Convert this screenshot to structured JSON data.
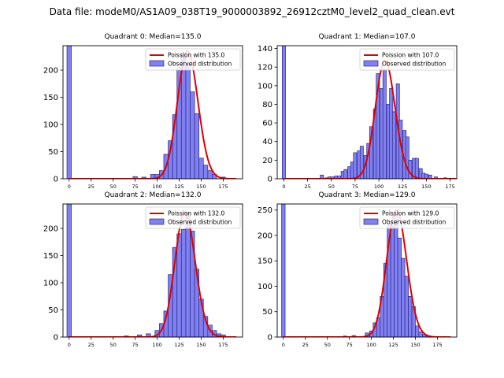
{
  "suptitle": "Data file: modeM0/AS1A09_038T19_9000003892_26912cztM0_level2_quad_clean.evt",
  "colors": {
    "bar_fill": "#8080f0",
    "bar_edge": "#2a2a8a",
    "curve": "#e00000",
    "frame": "#000000"
  },
  "chart_data": [
    {
      "type": "bar",
      "title": "Quadrant 0: Median=135.0",
      "xlabel": "",
      "ylabel": "",
      "xlim": [
        -7,
        197
      ],
      "ylim": [
        0,
        245
      ],
      "xticks": [
        0,
        25,
        50,
        75,
        100,
        125,
        150,
        175
      ],
      "yticks": [
        0,
        50,
        100,
        150,
        200
      ],
      "bin_width": 5,
      "bins": [
        {
          "x": 0,
          "v": 245
        },
        {
          "x": 75,
          "v": 4
        },
        {
          "x": 85,
          "v": 3
        },
        {
          "x": 95,
          "v": 8
        },
        {
          "x": 100,
          "v": 8
        },
        {
          "x": 105,
          "v": 15
        },
        {
          "x": 110,
          "v": 45
        },
        {
          "x": 115,
          "v": 70
        },
        {
          "x": 120,
          "v": 118
        },
        {
          "x": 125,
          "v": 205
        },
        {
          "x": 130,
          "v": 232
        },
        {
          "x": 135,
          "v": 212
        },
        {
          "x": 140,
          "v": 160
        },
        {
          "x": 145,
          "v": 120
        },
        {
          "x": 150,
          "v": 38
        },
        {
          "x": 155,
          "v": 25
        },
        {
          "x": 160,
          "v": 15
        },
        {
          "x": 165,
          "v": 8
        },
        {
          "x": 175,
          "v": 3
        }
      ],
      "poisson": {
        "mean": 135.0,
        "scale": 235
      },
      "legend": {
        "curve_label": "Poission with 135.0",
        "bar_label": "Observed distribution",
        "position": "upper right"
      }
    },
    {
      "type": "bar",
      "title": "Quadrant 1: Median=107.0",
      "xlabel": "",
      "ylabel": "",
      "xlim": [
        -7,
        182
      ],
      "ylim": [
        0,
        143
      ],
      "xticks": [
        0,
        25,
        50,
        75,
        100,
        125,
        150,
        175
      ],
      "yticks": [
        0,
        20,
        40,
        60,
        80,
        100,
        120,
        140
      ],
      "bin_width": 3.5,
      "bins": [
        {
          "x": 0,
          "v": 143
        },
        {
          "x": 40,
          "v": 4
        },
        {
          "x": 45,
          "v": 1
        },
        {
          "x": 48,
          "v": 2
        },
        {
          "x": 51,
          "v": 2
        },
        {
          "x": 55,
          "v": 3
        },
        {
          "x": 58,
          "v": 3
        },
        {
          "x": 62,
          "v": 8
        },
        {
          "x": 65,
          "v": 10
        },
        {
          "x": 69,
          "v": 13
        },
        {
          "x": 72,
          "v": 18
        },
        {
          "x": 75,
          "v": 28
        },
        {
          "x": 79,
          "v": 30
        },
        {
          "x": 82,
          "v": 35
        },
        {
          "x": 86,
          "v": 25
        },
        {
          "x": 89,
          "v": 38
        },
        {
          "x": 92,
          "v": 56
        },
        {
          "x": 96,
          "v": 75
        },
        {
          "x": 99,
          "v": 113
        },
        {
          "x": 103,
          "v": 97
        },
        {
          "x": 106,
          "v": 118
        },
        {
          "x": 110,
          "v": 80
        },
        {
          "x": 113,
          "v": 97
        },
        {
          "x": 116,
          "v": 72
        },
        {
          "x": 120,
          "v": 102
        },
        {
          "x": 123,
          "v": 63
        },
        {
          "x": 127,
          "v": 52
        },
        {
          "x": 130,
          "v": 45
        },
        {
          "x": 133,
          "v": 20
        },
        {
          "x": 137,
          "v": 22
        },
        {
          "x": 140,
          "v": 22
        },
        {
          "x": 144,
          "v": 11
        },
        {
          "x": 147,
          "v": 6
        },
        {
          "x": 150,
          "v": 5
        },
        {
          "x": 154,
          "v": 4
        },
        {
          "x": 160,
          "v": 2
        },
        {
          "x": 170,
          "v": 1
        }
      ],
      "poisson": {
        "mean": 107.0,
        "scale": 127
      },
      "legend": {
        "curve_label": "Poission with 107.0",
        "bar_label": "Observed distribution",
        "position": "upper right"
      }
    },
    {
      "type": "bar",
      "title": "Quadrant 2: Median=132.0",
      "xlabel": "",
      "ylabel": "",
      "xlim": [
        -7,
        197
      ],
      "ylim": [
        0,
        245
      ],
      "xticks": [
        0,
        25,
        50,
        75,
        100,
        125,
        150,
        175
      ],
      "yticks": [
        0,
        50,
        100,
        150,
        200
      ],
      "bin_width": 5,
      "bins": [
        {
          "x": 0,
          "v": 245
        },
        {
          "x": 65,
          "v": 2
        },
        {
          "x": 80,
          "v": 4
        },
        {
          "x": 90,
          "v": 6
        },
        {
          "x": 100,
          "v": 12
        },
        {
          "x": 105,
          "v": 25
        },
        {
          "x": 110,
          "v": 48
        },
        {
          "x": 115,
          "v": 115
        },
        {
          "x": 120,
          "v": 165
        },
        {
          "x": 125,
          "v": 190
        },
        {
          "x": 130,
          "v": 198
        },
        {
          "x": 135,
          "v": 230
        },
        {
          "x": 140,
          "v": 195
        },
        {
          "x": 145,
          "v": 125
        },
        {
          "x": 150,
          "v": 70
        },
        {
          "x": 155,
          "v": 38
        },
        {
          "x": 160,
          "v": 22
        },
        {
          "x": 165,
          "v": 12
        },
        {
          "x": 170,
          "v": 6
        },
        {
          "x": 175,
          "v": 4
        }
      ],
      "poisson": {
        "mean": 132.0,
        "scale": 230
      },
      "legend": {
        "curve_label": "Poission with 132.0",
        "bar_label": "Observed distribution",
        "position": "upper right"
      }
    },
    {
      "type": "bar",
      "title": "Quadrant 3: Median=129.0",
      "xlabel": "",
      "ylabel": "",
      "xlim": [
        -7,
        197
      ],
      "ylim": [
        0,
        262
      ],
      "xticks": [
        0,
        25,
        50,
        75,
        100,
        125,
        150,
        175
      ],
      "yticks": [
        0,
        50,
        100,
        150,
        200,
        250
      ],
      "bin_width": 4,
      "bins": [
        {
          "x": 0,
          "v": 262
        },
        {
          "x": 70,
          "v": 2
        },
        {
          "x": 80,
          "v": 3
        },
        {
          "x": 95,
          "v": 8
        },
        {
          "x": 100,
          "v": 12
        },
        {
          "x": 104,
          "v": 28
        },
        {
          "x": 108,
          "v": 38
        },
        {
          "x": 112,
          "v": 80
        },
        {
          "x": 116,
          "v": 145
        },
        {
          "x": 120,
          "v": 220
        },
        {
          "x": 124,
          "v": 218
        },
        {
          "x": 128,
          "v": 240
        },
        {
          "x": 132,
          "v": 195
        },
        {
          "x": 136,
          "v": 155
        },
        {
          "x": 140,
          "v": 120
        },
        {
          "x": 144,
          "v": 80
        },
        {
          "x": 148,
          "v": 60
        },
        {
          "x": 152,
          "v": 22
        },
        {
          "x": 156,
          "v": 10
        },
        {
          "x": 160,
          "v": 5
        },
        {
          "x": 164,
          "v": 2
        }
      ],
      "poisson": {
        "mean": 129.0,
        "scale": 250
      },
      "legend": {
        "curve_label": "Poission with 129.0",
        "bar_label": "Observed distribution",
        "position": "upper right"
      }
    }
  ]
}
